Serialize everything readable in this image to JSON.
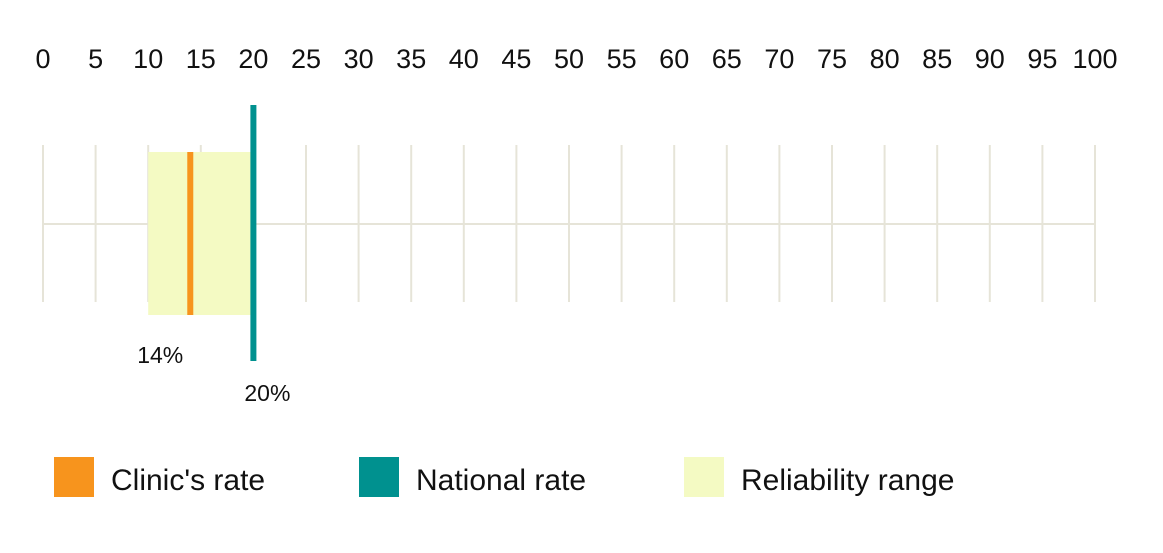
{
  "chart_data": {
    "type": "range-marker",
    "xlim": [
      0,
      100
    ],
    "xticks": [
      0,
      5,
      10,
      15,
      20,
      25,
      30,
      35,
      40,
      45,
      50,
      55,
      60,
      65,
      70,
      75,
      80,
      85,
      90,
      95,
      100
    ],
    "grid": true,
    "series": [
      {
        "name": "Clinic's rate",
        "color": "#f7941d",
        "values": [
          14
        ],
        "value_labels": [
          "14%"
        ]
      },
      {
        "name": "National rate",
        "color": "#00918f",
        "values": [
          20
        ],
        "value_labels": [
          "20%"
        ]
      },
      {
        "name": "Reliability range",
        "color": "#f4fac3",
        "values": [
          10,
          20
        ]
      }
    ]
  }
}
